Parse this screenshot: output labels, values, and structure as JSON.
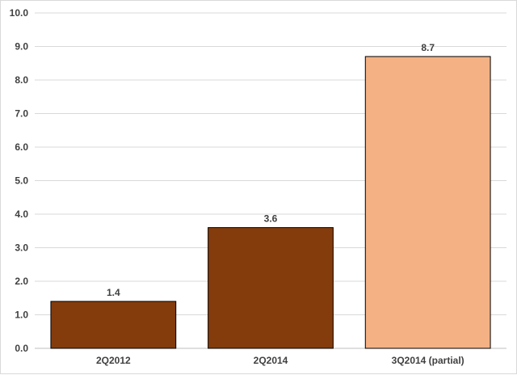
{
  "chart_data": {
    "type": "bar",
    "title": "",
    "xlabel": "",
    "ylabel": "",
    "categories": [
      "2Q2012",
      "2Q2014",
      "3Q2014 (partial)"
    ],
    "values": [
      1.4,
      3.6,
      8.7
    ],
    "value_labels": [
      "1.4",
      "3.6",
      "8.7"
    ],
    "bar_colors": [
      "#843C0C",
      "#843C0C",
      "#F4B183"
    ],
    "bar_outline": "#000000",
    "ylim": [
      0,
      10
    ],
    "ytick_step": 1,
    "ytick_labels": [
      "0.0",
      "1.0",
      "2.0",
      "3.0",
      "4.0",
      "5.0",
      "6.0",
      "7.0",
      "8.0",
      "9.0",
      "10.0"
    ],
    "grid": true,
    "grid_color": "#d9d9d9",
    "legend": "none"
  }
}
